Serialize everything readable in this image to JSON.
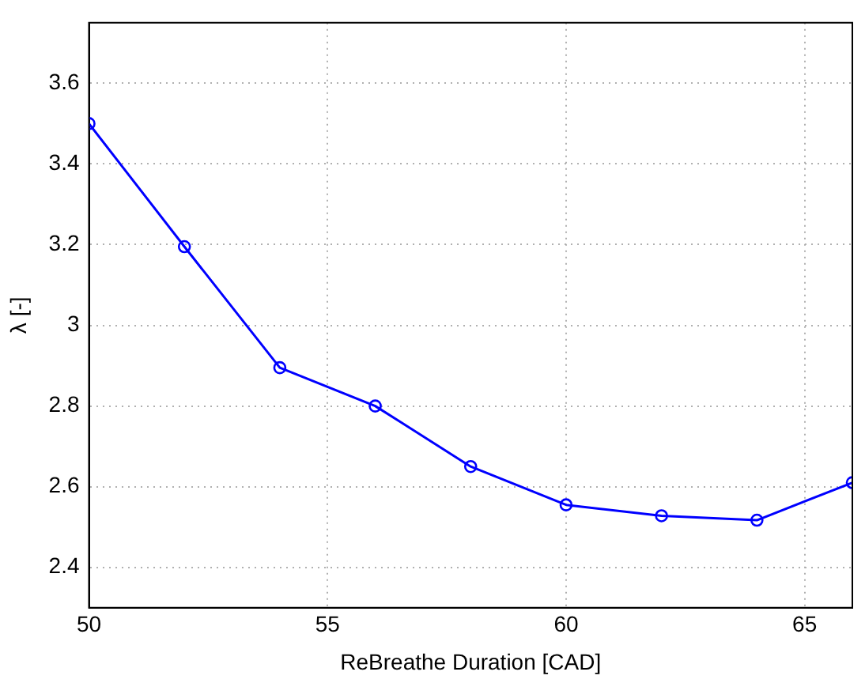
{
  "chart_data": {
    "type": "line",
    "xlabel": "ReBreathe Duration [CAD]",
    "ylabel": "λ [-]",
    "x": [
      50,
      52,
      54,
      56,
      58,
      60,
      62,
      64,
      66
    ],
    "series": [
      {
        "color": "#0000ff",
        "values": [
          3.5,
          3.195,
          2.895,
          2.8,
          2.65,
          2.555,
          2.528,
          2.517,
          2.61
        ]
      }
    ],
    "xlim": [
      50,
      66
    ],
    "xticks": [
      50,
      55,
      60,
      65
    ],
    "ylim": [
      2.3,
      3.75
    ],
    "yticks": [
      {
        "value": 2.4,
        "label": "2.4"
      },
      {
        "value": 2.6,
        "label": "2.6"
      },
      {
        "value": 2.8,
        "label": "2.8"
      },
      3,
      {
        "value": 3.2,
        "label": "3.2"
      },
      {
        "value": 3.4,
        "label": "3.4"
      },
      {
        "value": 3.6,
        "label": "3.6"
      }
    ],
    "grid": true,
    "legend": false,
    "marker": "circle",
    "line_style": "solid"
  }
}
